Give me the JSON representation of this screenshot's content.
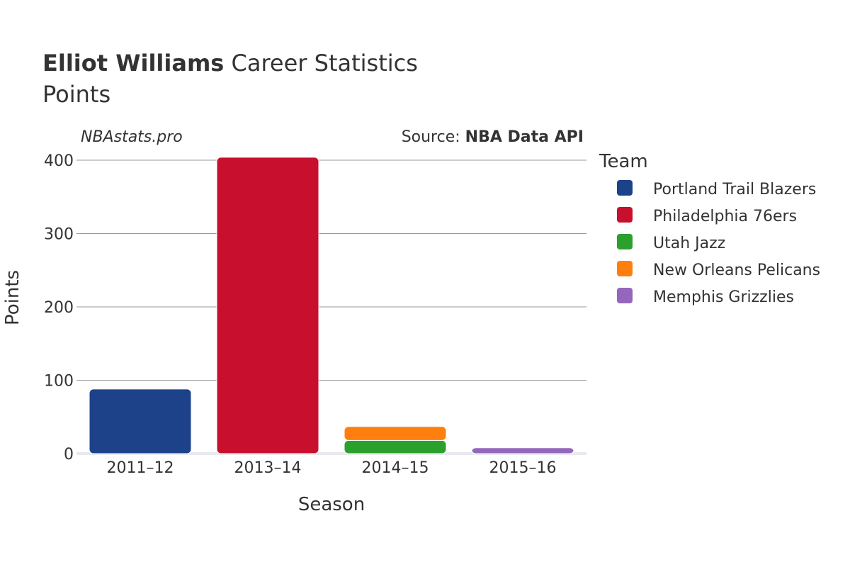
{
  "header": {
    "title_bold": "Elliot Williams",
    "title_rest": " Career Statistics",
    "subtitle": "Points"
  },
  "annotations": {
    "watermark": "NBAstats.pro",
    "source_prefix": "Source: ",
    "source_name": "NBA Data API"
  },
  "legend": {
    "title": "Team"
  },
  "chart_data": {
    "type": "bar",
    "stacked": true,
    "title": "Elliot Williams Career Statistics",
    "subtitle": "Points",
    "xlabel": "Season",
    "ylabel": "Points",
    "categories": [
      "2011–12",
      "2013–14",
      "2014–15",
      "2015–16"
    ],
    "ylim": [
      0,
      410
    ],
    "yticks": [
      0,
      100,
      200,
      300,
      400
    ],
    "grid": true,
    "legend_position": "right",
    "series": [
      {
        "name": "Portland Trail Blazers",
        "color": "#1d428a",
        "values": [
          88,
          0,
          0,
          0
        ]
      },
      {
        "name": "Philadelphia 76ers",
        "color": "#c8102e",
        "values": [
          0,
          404,
          0,
          0
        ]
      },
      {
        "name": "Utah Jazz",
        "color": "#2ca02c",
        "values": [
          0,
          0,
          18,
          0
        ]
      },
      {
        "name": "New Orleans Pelicans",
        "color": "#ff7f0e",
        "values": [
          0,
          0,
          19,
          0
        ]
      },
      {
        "name": "Memphis Grizzlies",
        "color": "#9467bd",
        "values": [
          0,
          0,
          0,
          8
        ]
      }
    ]
  }
}
